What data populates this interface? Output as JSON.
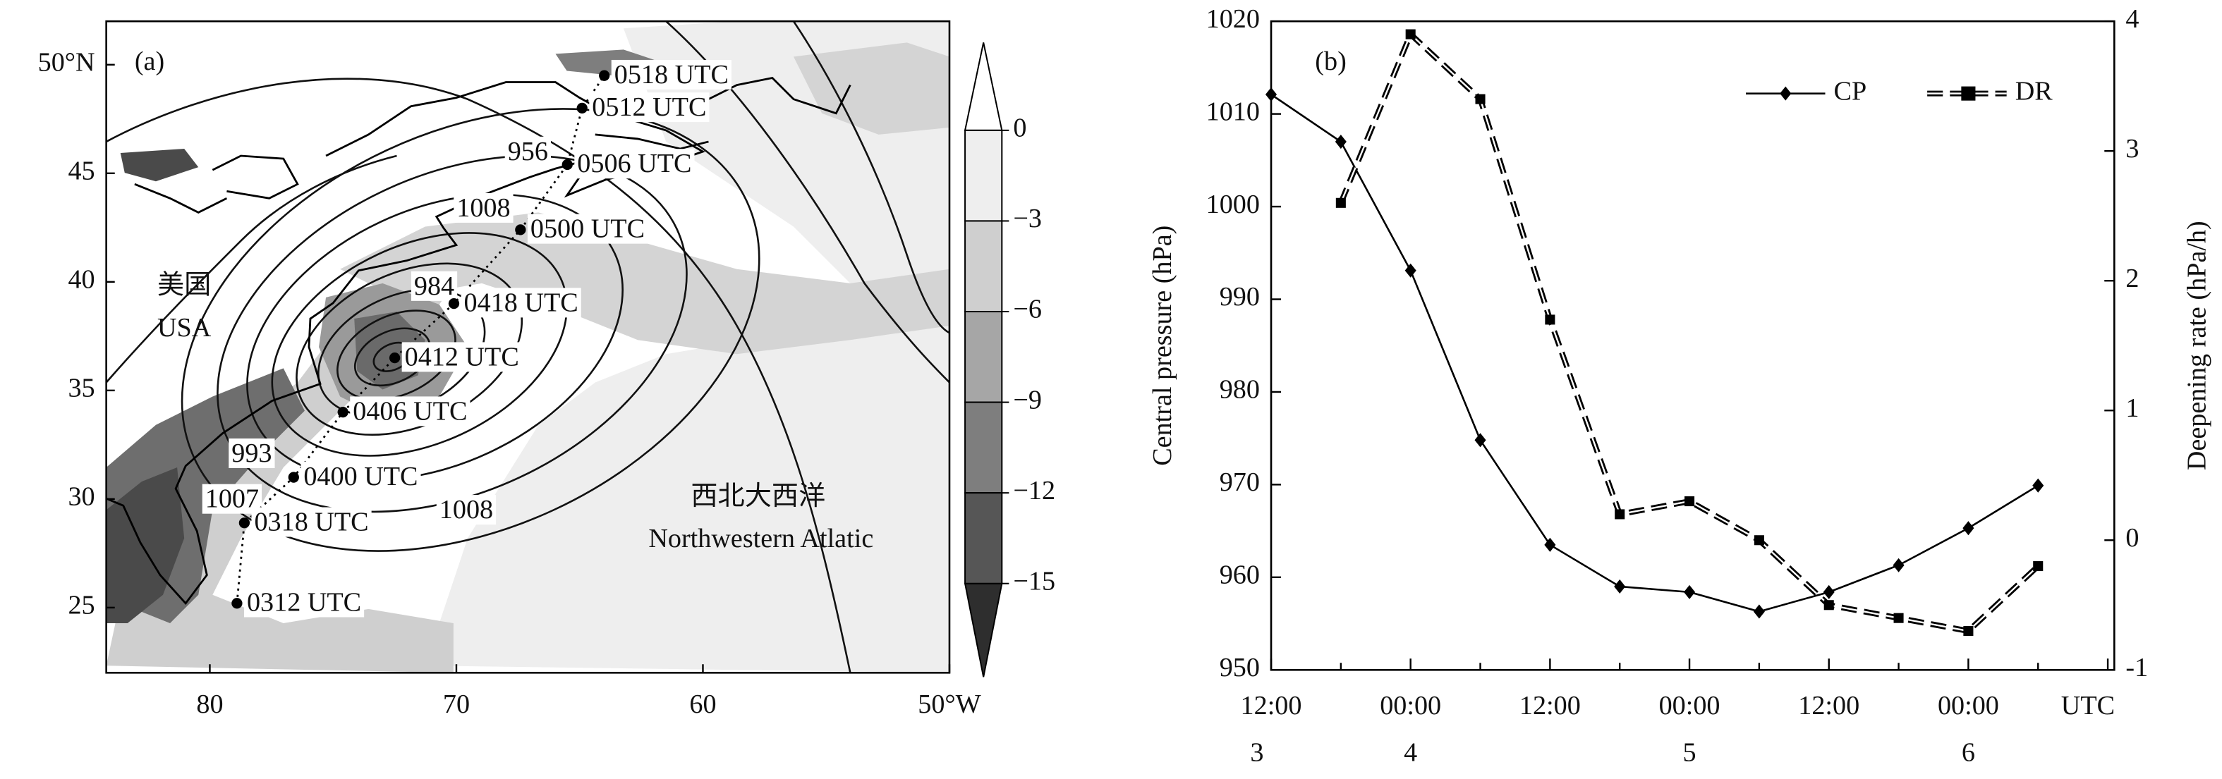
{
  "chart_data": [
    {
      "type": "map",
      "panel_label": "(a)",
      "xlim": [
        84.2,
        50
      ],
      "ylim": [
        22,
        52
      ],
      "xticks": [
        80,
        70,
        60,
        {
          "value": 50,
          "label": "50°W"
        }
      ],
      "yticks": [
        {
          "value": 50,
          "label": "50°N"
        },
        45,
        40,
        35,
        30,
        25
      ],
      "track": {
        "labels": [
          "0312 UTC",
          "0318 UTC",
          "0400 UTC",
          "0406 UTC",
          "0412 UTC",
          "0418 UTC",
          "0500 UTC",
          "0506 UTC",
          "0512 UTC",
          "0518 UTC"
        ],
        "lon": [
          78.9,
          78.6,
          76.6,
          74.6,
          72.5,
          70.1,
          67.4,
          65.5,
          64.9,
          64.0
        ],
        "lat": [
          25.2,
          28.9,
          31.0,
          34.0,
          36.5,
          39.0,
          42.4,
          45.4,
          48.0,
          49.5
        ]
      },
      "contour_labels": [
        {
          "label": "956",
          "lon": 67.1,
          "lat": 45.9
        },
        {
          "label": "1008",
          "lon": 68.9,
          "lat": 43.3
        },
        {
          "label": "984",
          "lon": 70.9,
          "lat": 39.7
        },
        {
          "label": "993",
          "lon": 78.3,
          "lat": 32.0
        },
        {
          "label": "1007",
          "lon": 79.1,
          "lat": 29.9
        },
        {
          "label": "1008",
          "lon": 69.6,
          "lat": 29.4
        }
      ],
      "annotations": [
        "美国",
        "USA",
        "西北大西洋",
        "Northwestern Atlatic"
      ],
      "colorbar": {
        "ticks": [
          0,
          {
            "value": -3,
            "label": "−3"
          },
          {
            "value": -6,
            "label": "−6"
          },
          {
            "value": -9,
            "label": "−9"
          },
          {
            "value": -12,
            "label": "−12"
          },
          {
            "value": -15,
            "label": "−15"
          }
        ],
        "colors": [
          "#eeeeee",
          "#cfcfcf",
          "#a6a6a6",
          "#7e7e7e",
          "#565656"
        ],
        "extend_colors": [
          "#ffffff",
          "#2e2e2e"
        ]
      }
    },
    {
      "type": "line",
      "panel_label": "(b)",
      "categories": [
        "12:00",
        null,
        "00:00",
        null,
        "12:00",
        null,
        "00:00",
        null,
        "12:00",
        null,
        "00:00",
        null,
        "UTC"
      ],
      "categories2": [
        "3",
        null,
        "4",
        null,
        null,
        null,
        "5",
        null,
        null,
        null,
        "6",
        null,
        null
      ],
      "y_label": "Central pressure (hPa)",
      "y2_label": "Deepening rate (hPa/h)",
      "ylim": [
        950,
        1020
      ],
      "yticks": [
        950,
        960,
        970,
        980,
        990,
        1000,
        1010,
        1020
      ],
      "y2lim": [
        -1,
        4
      ],
      "y2ticks": [
        -1,
        0,
        1,
        2,
        3,
        4
      ],
      "legend": "upper right",
      "series": [
        {
          "name": "CP",
          "color": "#000000",
          "values": [
            1012.1,
            1007.0,
            993.1,
            974.8,
            963.5,
            959.0,
            958.4,
            956.3,
            958.4,
            961.3,
            965.3,
            969.9,
            null
          ]
        },
        {
          "name": "DR",
          "color": "#000000",
          "axis": "y2",
          "values": [
            null,
            2.6,
            3.9,
            3.4,
            1.7,
            0.2,
            0.3,
            0.0,
            -0.5,
            -0.6,
            -0.7,
            -0.2,
            null
          ]
        }
      ]
    }
  ]
}
